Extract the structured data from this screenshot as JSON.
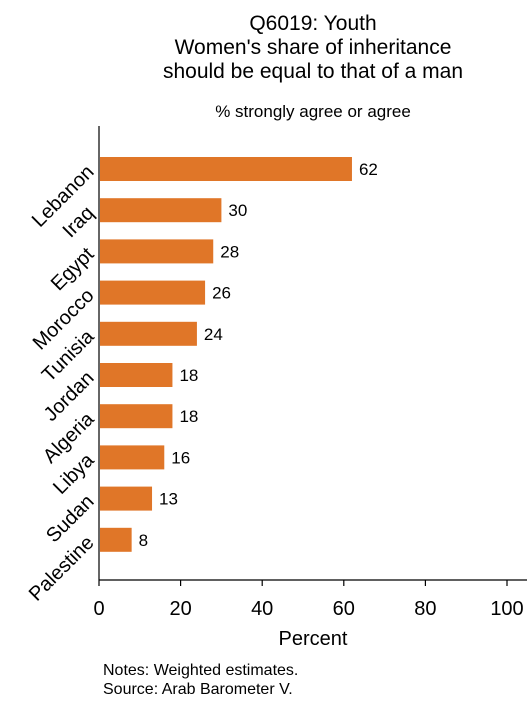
{
  "chart_data": {
    "type": "bar",
    "orientation": "horizontal",
    "title": [
      "Q6019: Youth",
      "Women's share of inheritance",
      "should be equal to that of a man"
    ],
    "subtitle": "% strongly agree or agree",
    "categories": [
      "Lebanon",
      "Iraq",
      "Egypt",
      "Morocco",
      "Tunisia",
      "Jordan",
      "Algeria",
      "Libya",
      "Sudan",
      "Palestine"
    ],
    "values": [
      62,
      30,
      28,
      26,
      24,
      18,
      18,
      16,
      13,
      8
    ],
    "data_labels": [
      "62",
      "30",
      "28",
      "26",
      "24",
      "18",
      "18",
      "16",
      "13",
      "8"
    ],
    "xlabel": "Percent",
    "ylabel": "",
    "xlim": [
      0,
      105
    ],
    "xticks": [
      0,
      20,
      40,
      60,
      80,
      100
    ],
    "grid": false,
    "legend": "none",
    "bar_color": "#e07628"
  },
  "notes": [
    "Notes: Weighted estimates.",
    "Source: Arab Barometer V."
  ]
}
